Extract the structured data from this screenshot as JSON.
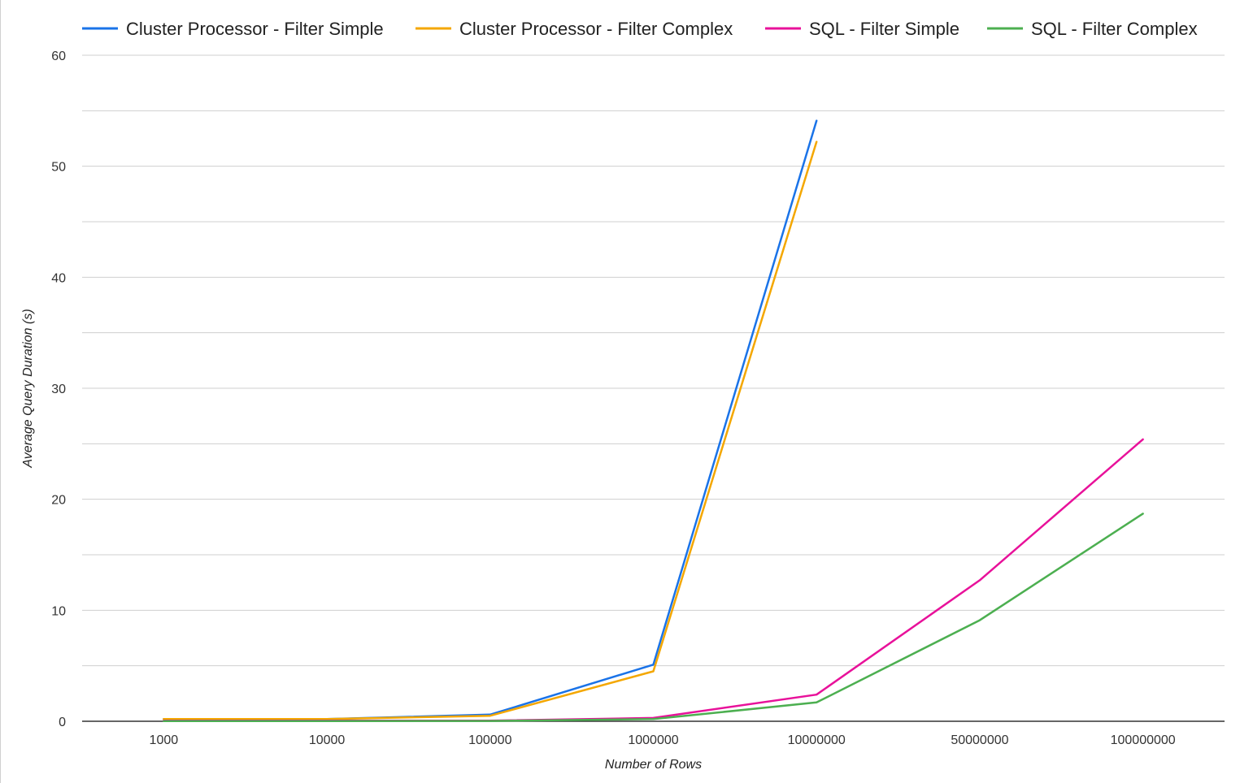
{
  "chart_data": {
    "type": "line",
    "title": "",
    "xlabel": "Number of Rows",
    "ylabel": "Average Query Duration (s)",
    "categories": [
      "1000",
      "10000",
      "100000",
      "1000000",
      "10000000",
      "50000000",
      "100000000"
    ],
    "ylim": [
      0,
      60
    ],
    "yticks": [
      "0",
      "10",
      "20",
      "30",
      "40",
      "50",
      "60"
    ],
    "grid": true,
    "legend_position": "top",
    "series": [
      {
        "name": "Cluster Processor - Filter Simple",
        "color": "#1a73e8",
        "values": [
          0.2,
          0.2,
          0.6,
          5.1,
          54.1,
          null,
          null
        ]
      },
      {
        "name": "Cluster Processor - Filter Complex",
        "color": "#f4a700",
        "values": [
          0.2,
          0.2,
          0.5,
          4.5,
          52.2,
          null,
          null
        ]
      },
      {
        "name": "SQL - Filter Simple",
        "color": "#e8119a",
        "values": [
          0.05,
          0.05,
          0.05,
          0.3,
          2.4,
          12.7,
          25.4
        ]
      },
      {
        "name": "SQL - Filter Complex",
        "color": "#4caf50",
        "values": [
          0.02,
          0.02,
          0.03,
          0.2,
          1.7,
          9.1,
          18.7
        ]
      }
    ]
  }
}
